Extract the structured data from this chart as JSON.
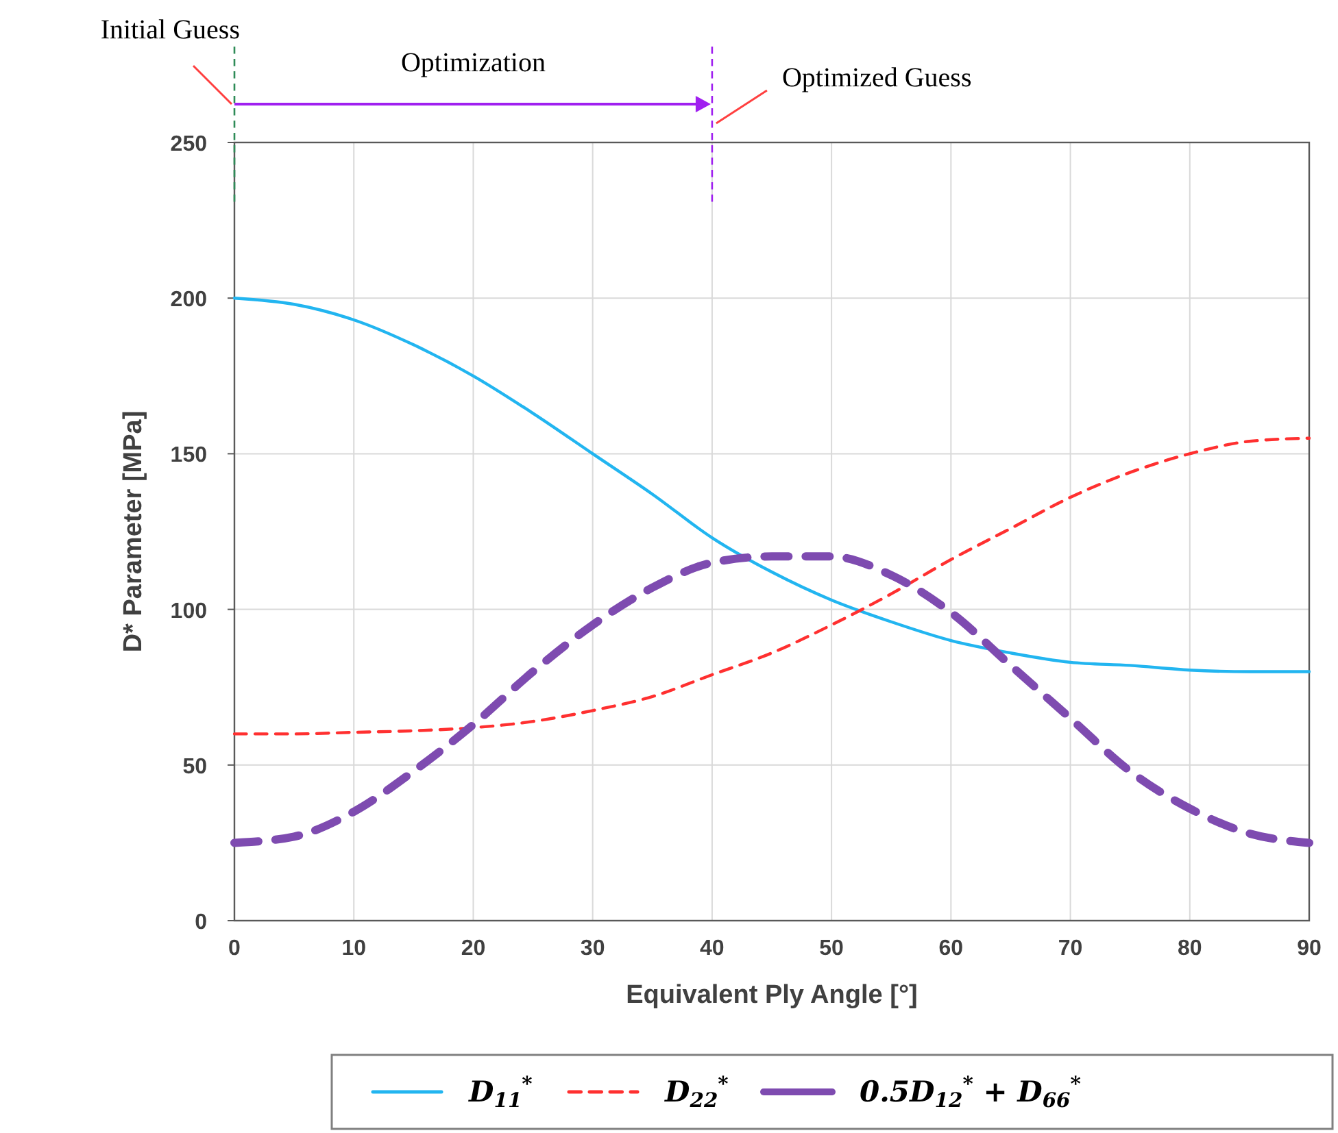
{
  "chart_data": {
    "type": "line",
    "xlabel": "Equivalent Ply Angle [°]",
    "ylabel": "D* Parameter [MPa]",
    "x": [
      0,
      5,
      10,
      15,
      20,
      25,
      30,
      35,
      40,
      45,
      50,
      55,
      60,
      65,
      70,
      75,
      80,
      85,
      90
    ],
    "series": [
      {
        "name": "D$_{11}$$^{*}$",
        "color": "#22b5f0",
        "line_style": "solid",
        "values": [
          200,
          198,
          193,
          185,
          175,
          163,
          150,
          137,
          123,
          112,
          103,
          96,
          90,
          86,
          83,
          82,
          80.5,
          80,
          80
        ]
      },
      {
        "name": "D$_{22}$$^{*}$",
        "color": "#ff3030",
        "line_style": "dashed",
        "values": [
          60,
          60,
          60.5,
          61,
          62,
          64,
          67.5,
          72,
          79,
          86,
          95,
          105,
          116,
          126,
          136,
          144,
          150,
          154,
          155
        ]
      },
      {
        "name": "0.5D$_{12}$$^{*}$ + D$_{66}$$^{*}$",
        "color": "#7e4bb0",
        "line_style": "dashed",
        "values": [
          25,
          27,
          35,
          48,
          63,
          80,
          95,
          107,
          115,
          117,
          117,
          111,
          99,
          82,
          65,
          48,
          36,
          28,
          25
        ]
      }
    ],
    "xlim": [
      0,
      90
    ],
    "xticks": [
      0,
      10,
      20,
      30,
      40,
      50,
      60,
      70,
      80,
      90
    ],
    "ylim": [
      0,
      250
    ],
    "yticks": [
      0,
      50,
      100,
      150,
      200,
      250
    ],
    "grid": true,
    "legend": "bottom",
    "ref_lines": [
      {
        "axis": "x",
        "value": 0,
        "label": "Initial Guess",
        "color": "#2e8b57",
        "line_style": "dashed"
      },
      {
        "axis": "x",
        "value": 40,
        "label": "Optimized Guess",
        "color": "#a020f0",
        "line_style": "dashed"
      }
    ],
    "annotations": [
      "Optimization"
    ]
  }
}
